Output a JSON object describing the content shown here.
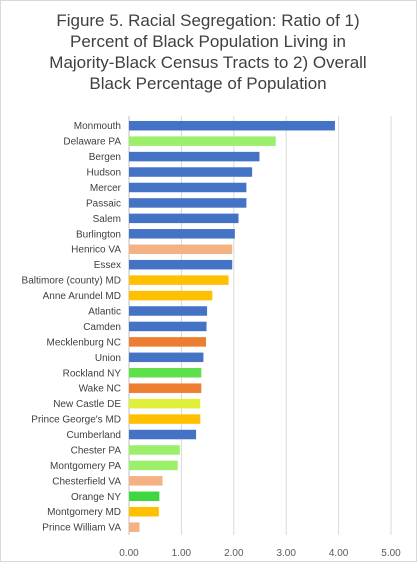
{
  "chart_data": {
    "type": "bar",
    "orientation": "horizontal",
    "title_lines": [
      "Figure 5. Racial Segregation: Ratio of 1)",
      "Percent of Black Population Living in",
      "Majority-Black Census Tracts to 2) Overall",
      "Black Percentage of Population"
    ],
    "xlabel": "",
    "ylabel": "",
    "xlim": [
      0,
      5
    ],
    "x_ticks": [
      "0.00",
      "1.00",
      "2.00",
      "3.00",
      "4.00",
      "5.00"
    ],
    "x_tick_values": [
      0,
      1,
      2,
      3,
      4,
      5
    ],
    "grid": true,
    "legend": "none",
    "categories": [
      "Monmouth",
      "Delaware PA",
      "Bergen",
      "Hudson",
      "Mercer",
      "Passaic",
      "Salem",
      "Burlington",
      "Henrico VA",
      "Essex",
      "Baltimore (county) MD",
      "Anne Arundel MD",
      "Atlantic",
      "Camden",
      "Mecklenburg NC",
      "Union",
      "Rockland NY",
      "Wake NC",
      "New Castle DE",
      "Prince George's MD",
      "Cumberland",
      "Chester PA",
      "Montgomery PA",
      "Chesterfield VA",
      "Orange NY",
      "Montgomery MD",
      "Prince William VA"
    ],
    "values": [
      3.93,
      2.8,
      2.49,
      2.35,
      2.24,
      2.24,
      2.09,
      2.02,
      1.97,
      1.97,
      1.9,
      1.59,
      1.49,
      1.48,
      1.47,
      1.42,
      1.38,
      1.38,
      1.36,
      1.36,
      1.28,
      0.97,
      0.93,
      0.64,
      0.58,
      0.57,
      0.2
    ],
    "bar_colors": [
      "#4472c4",
      "#9bef6a",
      "#4472c4",
      "#4472c4",
      "#4472c4",
      "#4472c4",
      "#4472c4",
      "#4472c4",
      "#f4b183",
      "#4472c4",
      "#ffc000",
      "#ffc000",
      "#4472c4",
      "#4472c4",
      "#ed7d31",
      "#4472c4",
      "#5ee04a",
      "#ed7d31",
      "#e0ef3a",
      "#ffc000",
      "#4472c4",
      "#9bef6a",
      "#9bef6a",
      "#f4b183",
      "#3fd63f",
      "#ffc000",
      "#f4b183"
    ],
    "colors": {
      "grid": "#d9d9d9",
      "axis": "#bfbfbf",
      "text": "#404040"
    }
  }
}
